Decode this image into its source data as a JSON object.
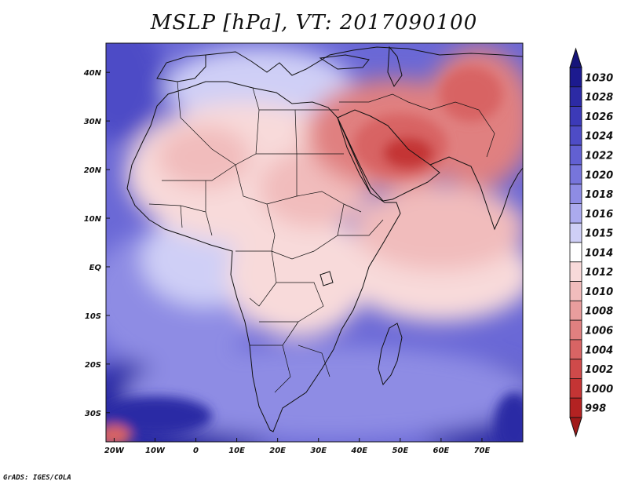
{
  "title": "MSLP [hPa], VT: 2017090100",
  "credit": "GrADS: IGES/COLA",
  "map": {
    "lat_range": [
      -36,
      46
    ],
    "lon_range": [
      -22,
      80
    ],
    "lat_ticks": [
      {
        "lat": 40,
        "label": "40N"
      },
      {
        "lat": 30,
        "label": "30N"
      },
      {
        "lat": 20,
        "label": "20N"
      },
      {
        "lat": 10,
        "label": "10N"
      },
      {
        "lat": 0,
        "label": "EQ"
      },
      {
        "lat": -10,
        "label": "10S"
      },
      {
        "lat": -20,
        "label": "20S"
      },
      {
        "lat": -30,
        "label": "30S"
      }
    ],
    "lon_ticks": [
      {
        "lon": -20,
        "label": "20W"
      },
      {
        "lon": -10,
        "label": "10W"
      },
      {
        "lon": 0,
        "label": "0"
      },
      {
        "lon": 10,
        "label": "10E"
      },
      {
        "lon": 20,
        "label": "20E"
      },
      {
        "lon": 30,
        "label": "30E"
      },
      {
        "lon": 40,
        "label": "40E"
      },
      {
        "lon": 50,
        "label": "50E"
      },
      {
        "lon": 60,
        "label": "60E"
      },
      {
        "lon": 70,
        "label": "70E"
      }
    ]
  },
  "colorbar": {
    "levels": [
      {
        "label": "1030",
        "color": "#1c1a8f"
      },
      {
        "label": "1028",
        "color": "#2c2aa5"
      },
      {
        "label": "1026",
        "color": "#3c3ab8"
      },
      {
        "label": "1024",
        "color": "#4e4cc6"
      },
      {
        "label": "1022",
        "color": "#6260d2"
      },
      {
        "label": "1020",
        "color": "#7775db"
      },
      {
        "label": "1018",
        "color": "#8e8ce4"
      },
      {
        "label": "1016",
        "color": "#abaaee"
      },
      {
        "label": "1015",
        "color": "#cfcff6"
      },
      {
        "label": "1014",
        "color": "#ffffff"
      },
      {
        "label": "1012",
        "color": "#f8dada"
      },
      {
        "label": "1010",
        "color": "#f1bcbc"
      },
      {
        "label": "1008",
        "color": "#e89d9d"
      },
      {
        "label": "1006",
        "color": "#e08080"
      },
      {
        "label": "1004",
        "color": "#d86464"
      },
      {
        "label": "1002",
        "color": "#cf4a4a"
      },
      {
        "label": "1000",
        "color": "#c43434"
      },
      {
        "label": "998",
        "color": "#b32222"
      }
    ],
    "top_arrow_color": "#16147a",
    "bottom_arrow_color": "#a01a1a"
  },
  "fields": {
    "background": "#6a68d6",
    "colors": {
      "deep_blue": "#2c2aa5",
      "mid_blue": "#4e4cc6",
      "light_blue": "#8e8ce4",
      "pale_blue": "#cfcff6",
      "white": "#ffffff",
      "pale_red": "#f8dada",
      "light_red": "#f1bcbc",
      "mid_red": "#e08080",
      "red": "#d86464",
      "dark_red": "#c43434"
    }
  }
}
